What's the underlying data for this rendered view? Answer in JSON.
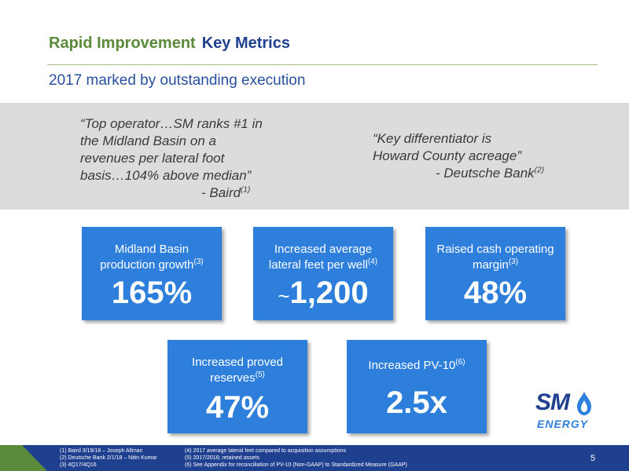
{
  "header": {
    "title_part1": "Rapid Improvement",
    "title_part2": "Key Metrics",
    "subtitle": "2017 marked by outstanding execution"
  },
  "quotes": [
    {
      "lines": [
        "“Top operator…SM ranks #1 in",
        "the Midland Basin on a",
        "revenues per lateral foot",
        "basis…104% above median”"
      ],
      "attribution": "- Baird",
      "footnote": "(1)"
    },
    {
      "lines": [
        "“Key differentiator is",
        "Howard County acreage”"
      ],
      "attribution": "- Deutsche Bank",
      "footnote": "(2)"
    }
  ],
  "metrics": [
    {
      "label_lines": [
        "Midland Basin",
        "production growth"
      ],
      "footnote": "(3)",
      "value": "165%"
    },
    {
      "label_lines": [
        "Increased average",
        "lateral feet per well"
      ],
      "footnote": "(4)",
      "prefix": "~",
      "value": "1,200"
    },
    {
      "label_lines": [
        "Raised cash operating",
        "margin"
      ],
      "footnote": "(3)",
      "value": "48%"
    },
    {
      "label_lines": [
        "Increased proved",
        "reserves"
      ],
      "footnote": "(5)",
      "value": "47%"
    },
    {
      "label_lines": [
        "Increased PV-10"
      ],
      "footnote": "(6)",
      "value": "2.5x"
    }
  ],
  "logo": {
    "line1": "SM",
    "line2": "ENERGY"
  },
  "footnotes_left": [
    "(1)    Baird 3/19/18 – Joseph Allman",
    "(2)    Deutsche Bank 2/1/18 – Nitin Kumar",
    "(3)    4Q17/4Q16"
  ],
  "footnotes_right": [
    "(4)  2017 average lateral feet compared to acquisition assumptions",
    "(5)  2017/2016; retained assets",
    "(6)  See Appendix for reconciliation of PV-10 (Non-GAAP) to Standardized Measure (GAAP)"
  ],
  "page_number": "5",
  "colors": {
    "green": "#5a8a3a",
    "navy": "#1f3f8f",
    "blue": "#2e7fdc",
    "band_gray": "#dcdcdc"
  }
}
